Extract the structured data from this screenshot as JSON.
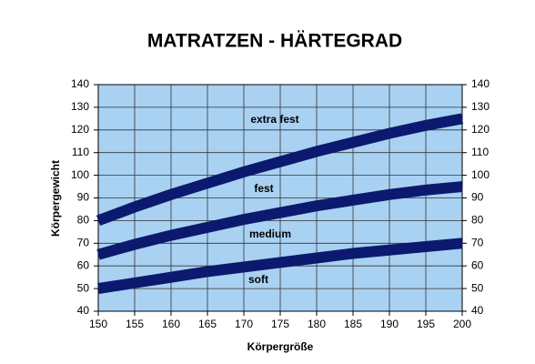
{
  "chart_data": {
    "type": "line",
    "title": "MATRATZEN - HÄRTEGRAD",
    "x_label": "Körpergröße",
    "y_label": "Körpergewicht",
    "annotations": [
      "extra fest",
      "fest",
      "medium",
      "soft"
    ],
    "x": [
      150,
      155,
      160,
      165,
      170,
      175,
      180,
      185,
      190,
      195,
      200
    ],
    "series": [
      {
        "color": "#0b1a6e",
        "values": [
          80,
          86,
          91.5,
          96.5,
          101.5,
          106,
          110.5,
          114.5,
          118.5,
          122,
          125
        ]
      },
      {
        "color": "#0b1a6e",
        "values": [
          65,
          69.5,
          73.5,
          77,
          80.5,
          83.5,
          86.5,
          89,
          91.5,
          93.5,
          95
        ]
      },
      {
        "color": "#0b1a6e",
        "values": [
          50,
          52.5,
          55,
          57.5,
          59.5,
          61.5,
          63.5,
          65.5,
          67,
          68.5,
          70
        ]
      }
    ],
    "xlim": [
      150,
      200
    ],
    "xticks": [
      150,
      155,
      160,
      165,
      170,
      175,
      180,
      185,
      190,
      195,
      200
    ],
    "ylim": [
      40,
      140
    ],
    "yticks": [
      40,
      50,
      60,
      70,
      80,
      90,
      100,
      110,
      120,
      130,
      140
    ],
    "y2lim": [
      40,
      140
    ],
    "y2ticks": [
      40,
      50,
      60,
      70,
      80,
      90,
      100,
      110,
      120,
      130,
      140
    ],
    "grid": true,
    "plot_color": "#a9d1f2"
  }
}
